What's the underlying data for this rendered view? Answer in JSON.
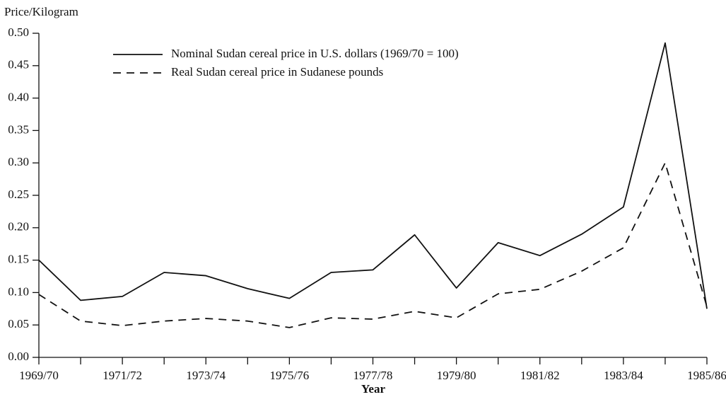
{
  "chart_data": {
    "type": "line",
    "y_label": "Price/Kilogram",
    "x_label": "Year",
    "categories": [
      "1969/70",
      null,
      "1971/72",
      null,
      "1973/74",
      null,
      "1975/76",
      null,
      "1977/78",
      null,
      "1979/80",
      null,
      "1981/82",
      null,
      "1983/84",
      null,
      "1985/86"
    ],
    "series": [
      {
        "name": "Nominal Sudan cereal price in U.S. dollars (1969/70 = 100)",
        "color": "#111111",
        "style": "solid",
        "values": [
          0.15,
          0.088,
          0.094,
          0.131,
          0.126,
          0.106,
          0.091,
          0.131,
          0.135,
          0.189,
          0.107,
          0.177,
          0.157,
          0.19,
          0.232,
          0.485,
          0.075
        ]
      },
      {
        "name": "Real Sudan cereal price in Sudanese pounds",
        "color": "#111111",
        "style": "dashed",
        "values": [
          0.097,
          0.056,
          0.049,
          0.056,
          0.06,
          0.056,
          0.046,
          0.061,
          0.059,
          0.071,
          0.061,
          0.098,
          0.105,
          0.133,
          0.169,
          0.3,
          0.078
        ]
      }
    ],
    "ylim": [
      0,
      0.5
    ],
    "yticks": [
      {
        "value": 0,
        "label": "0.00"
      },
      0.05,
      {
        "value": 0.1,
        "label": "0.10"
      },
      0.15,
      {
        "value": 0.2,
        "label": "0.20"
      },
      0.25,
      {
        "value": 0.3,
        "label": "0.30"
      },
      0.35,
      {
        "value": 0.4,
        "label": "0.40"
      },
      0.45,
      {
        "value": 0.5,
        "label": "0.50"
      }
    ],
    "grid": false,
    "legend": "top"
  }
}
